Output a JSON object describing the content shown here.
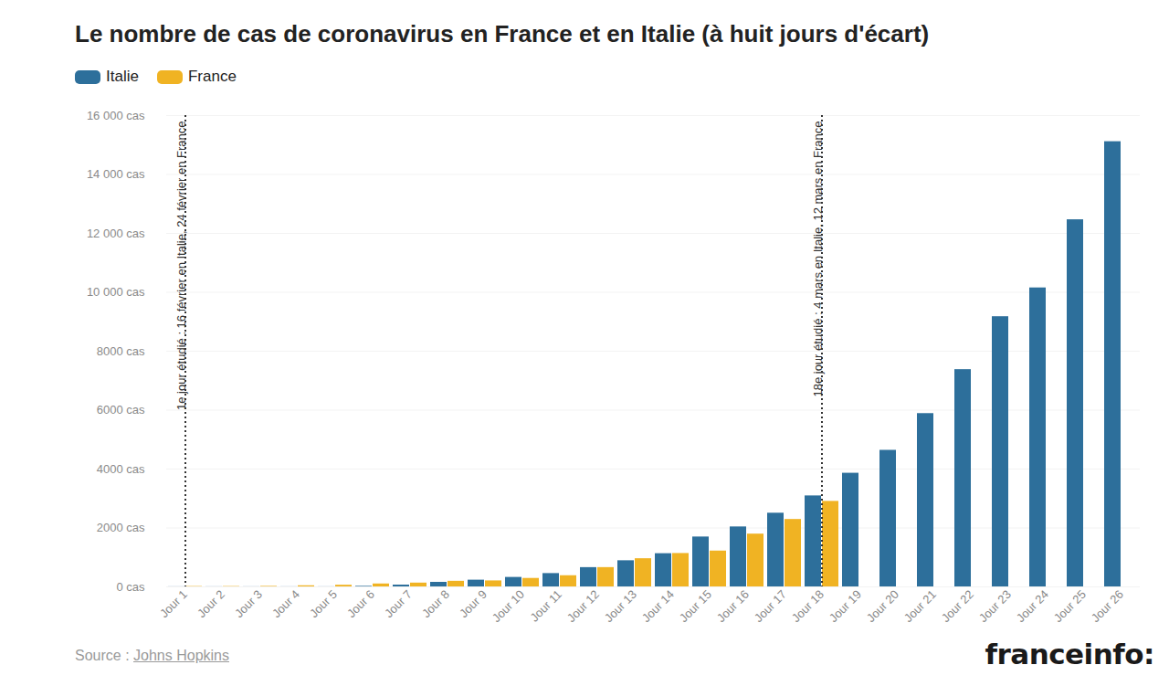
{
  "chart_data": {
    "type": "bar",
    "title": "Le nombre de cas de coronavirus en France et en Italie (à huit jours d'écart)",
    "categories": [
      "Jour 1",
      "Jour 2",
      "Jour 3",
      "Jour 4",
      "Jour 5",
      "Jour 6",
      "Jour 7",
      "Jour 8",
      "Jour 9",
      "Jour 10",
      "Jour 11",
      "Jour 12",
      "Jour 13",
      "Jour 14",
      "Jour 15",
      "Jour 16",
      "Jour 17",
      "Jour 18",
      "Jour 19",
      "Jour 20",
      "Jour 21",
      "Jour 22",
      "Jour 23",
      "Jour 24",
      "Jour 25",
      "Jour 26"
    ],
    "series": [
      {
        "name": "Italie",
        "color": "#2d6f9b",
        "values": [
          3,
          3,
          3,
          3,
          3,
          20,
          62,
          155,
          229,
          322,
          453,
          655,
          888,
          1128,
          1694,
          2036,
          2502,
          3089,
          3858,
          4636,
          5883,
          7375,
          9172,
          10149,
          12462,
          15113
        ]
      },
      {
        "name": "France",
        "color": "#f0b323",
        "values": [
          12,
          12,
          18,
          38,
          57,
          100,
          130,
          191,
          204,
          288,
          380,
          656,
          957,
          1134,
          1217,
          1792,
          2289,
          2903,
          null,
          null,
          null,
          null,
          null,
          null,
          null,
          null
        ]
      }
    ],
    "ylim": [
      0,
      16000
    ],
    "yticks": [
      {
        "value": 0,
        "label": "0 cas"
      },
      {
        "value": 2000,
        "label": "2000 cas"
      },
      {
        "value": 4000,
        "label": "4000 cas"
      },
      {
        "value": 6000,
        "label": "6000 cas"
      },
      {
        "value": 8000,
        "label": "8000 cas"
      },
      {
        "value": 10000,
        "label": "10 000 cas"
      },
      {
        "value": 12000,
        "label": "12 000 cas"
      },
      {
        "value": 14000,
        "label": "14 000 cas"
      },
      {
        "value": 16000,
        "label": "16 000 cas"
      }
    ],
    "grid": true,
    "legend": "top-left",
    "annotations": [
      {
        "category": "Jour 1",
        "text": "1e jour étudié : 16 février en Italie, 24 février en France"
      },
      {
        "category": "Jour 18",
        "text": "18e jour étudié : 4 mars en Italie, 12 mars en France"
      }
    ],
    "source_label": "Source :",
    "source": "Johns Hopkins",
    "logo": "franceinfo:"
  }
}
